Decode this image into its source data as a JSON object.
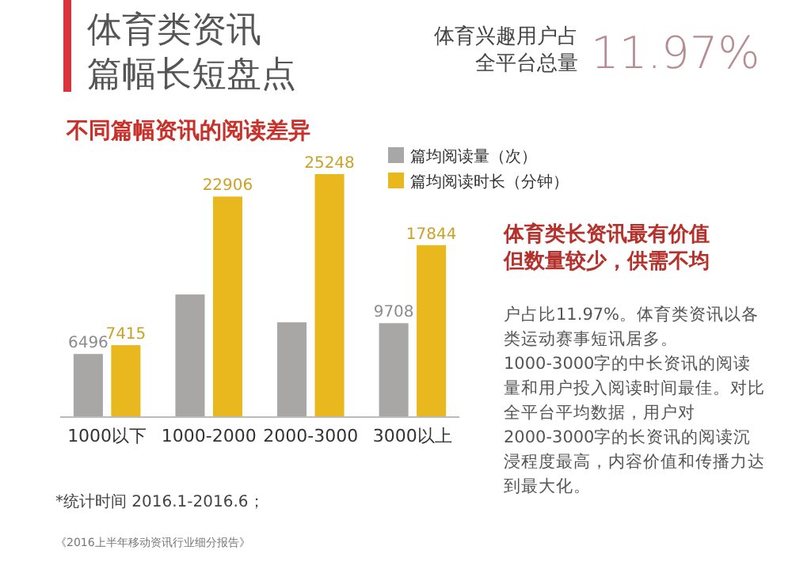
{
  "chart_data": {
    "type": "bar",
    "title": "体育类资讯篇幅长短盘点",
    "subtitle": "不同篇幅资讯的阅读差异",
    "categories": [
      "1000以下",
      "1000-2000",
      "2000-3000",
      "3000以上"
    ],
    "series": [
      {
        "name": "篇均阅读量（次）",
        "color": "#a9a6a6",
        "values": [
          6496,
          12700,
          9800,
          9708
        ],
        "value_labels": [
          "6496",
          null,
          null,
          "9708"
        ]
      },
      {
        "name": "篇均阅读时长（分钟）",
        "color": "#e9b81e",
        "values": [
          7415,
          22906,
          25248,
          17844
        ],
        "value_labels": [
          "7415",
          "22906",
          "25248",
          "17844"
        ]
      }
    ],
    "legend": "top right",
    "annotations": [
      "体育兴趣用户占全平台总量",
      "11.97%",
      "体育类长资讯最有价值但数量较少，供需不均",
      "户占比11.97%。体育类资讯以各类运动赛事短讯居多。1000-3000字的中长资讯的阅读量和用户投入阅读时间最佳。对比全平台平均数据，用户对2000-3000字的长资讯的阅读沉浸程度最高，内容价值和传播力达到最大化。",
      "*统计时间 2016.1-2016.6；",
      "《2016上半年移动资讯行业细分报告》"
    ]
  }
}
